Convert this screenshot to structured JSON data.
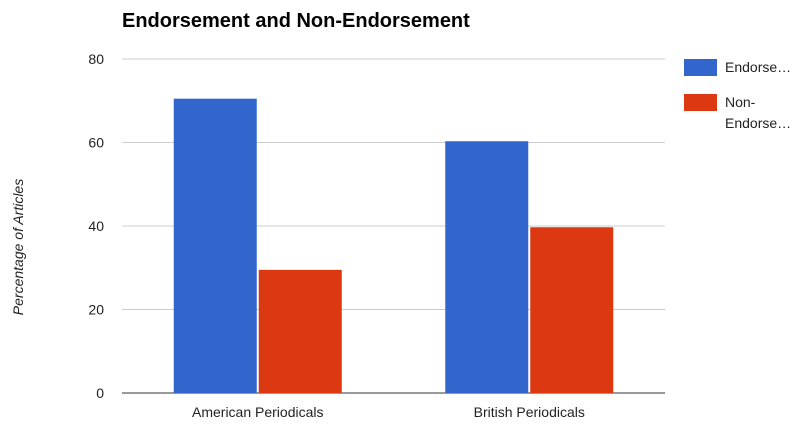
{
  "chart_data": {
    "type": "bar",
    "title": "Endorsement and Non-Endorsement",
    "xlabel": "",
    "ylabel": "Percentage of Articles",
    "categories": [
      "American Periodicals",
      "British Periodicals"
    ],
    "series": [
      {
        "name": "Endorsement",
        "legend_label": [
          "Endorse…"
        ],
        "color": "#3366cc",
        "values": [
          70.5,
          60.3
        ]
      },
      {
        "name": "Non-Endorsement",
        "legend_label": [
          "Non-",
          "Endorse…"
        ],
        "color": "#dc3912",
        "values": [
          29.5,
          39.7
        ]
      }
    ],
    "ylim": [
      0,
      80
    ],
    "yticks": [
      0,
      20,
      40,
      60,
      80
    ],
    "grid": true,
    "legend_position": "right"
  }
}
